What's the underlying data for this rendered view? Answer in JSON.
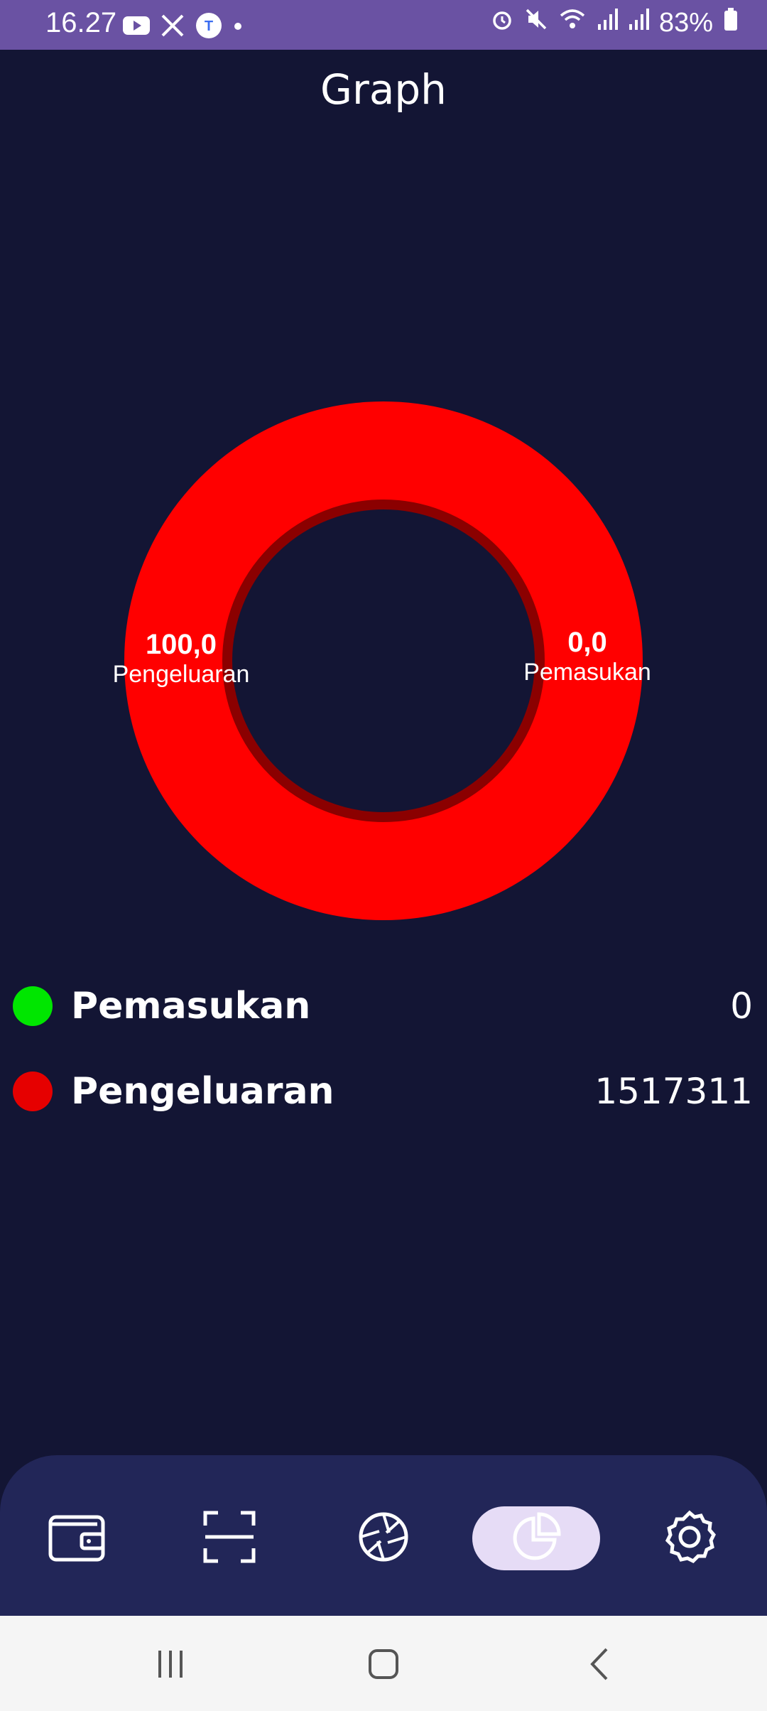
{
  "status_bar": {
    "time": "16.27",
    "battery": "83%",
    "icons": [
      "youtube-icon",
      "x-icon",
      "app-icon",
      "dot-icon",
      "alarm-icon",
      "mute-icon",
      "wifi-icon",
      "signal-icon",
      "signal-icon",
      "battery-icon"
    ]
  },
  "page": {
    "title": "Graph"
  },
  "chart_data": {
    "type": "pie",
    "categories": [
      "Pengeluaran",
      "Pemasukan"
    ],
    "values": [
      100.0,
      0.0
    ],
    "labels": [
      "100,0",
      "0,0"
    ],
    "colors": [
      "#ff0000",
      "#00e600"
    ],
    "donut": true
  },
  "legend": [
    {
      "name": "Pemasukan",
      "value": "0",
      "color": "#00e600"
    },
    {
      "name": "Pengeluaran",
      "value": "1517311",
      "color": "#e60000"
    }
  ],
  "bottom_nav": {
    "items": [
      {
        "icon": "wallet-icon"
      },
      {
        "icon": "scan-icon"
      },
      {
        "icon": "aperture-icon"
      },
      {
        "icon": "pie-chart-icon",
        "active": true
      },
      {
        "icon": "gear-icon"
      }
    ],
    "active_color": "#e6dcf6"
  },
  "system_nav": {
    "icons": [
      "recent-apps-icon",
      "home-icon",
      "back-icon"
    ]
  }
}
